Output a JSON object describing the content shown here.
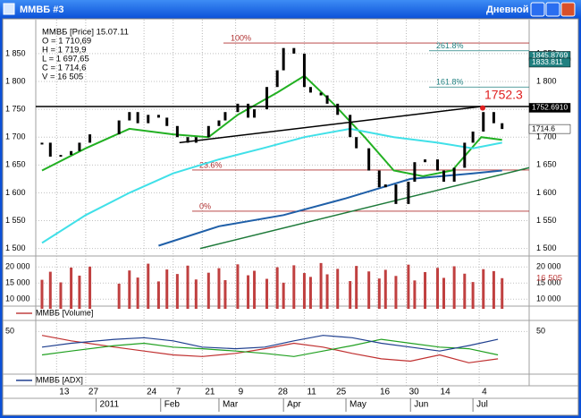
{
  "window": {
    "title": "ММВБ #3",
    "mode": "Дневной"
  },
  "info": {
    "lines": [
      "ММВБ [Price] 15.07.11",
      "O = 1 710,69",
      "H = 1 719,9",
      "L = 1 697,65",
      "C = 1 714,6",
      "V = 16 505"
    ]
  },
  "x_axis": {
    "xlim": [
      "2010-12-03",
      "2011-07-28"
    ],
    "ticks": [
      {
        "value": "2010-12-13",
        "label": "13"
      },
      {
        "value": "2010-12-27",
        "label": "27"
      },
      {
        "value": "2011-01-24",
        "label": "24"
      },
      {
        "value": "2011-02-07",
        "label": "7"
      },
      {
        "value": "2011-02-21",
        "label": "21"
      },
      {
        "value": "2011-03-09",
        "label": "9"
      },
      {
        "value": "2011-03-28",
        "label": "28"
      },
      {
        "value": "2011-04-11",
        "label": "11"
      },
      {
        "value": "2011-04-25",
        "label": "25"
      },
      {
        "value": "2011-05-16",
        "label": "16"
      },
      {
        "value": "2011-05-30",
        "label": "30"
      },
      {
        "value": "2011-06-14",
        "label": "14"
      },
      {
        "value": "2011-07-04",
        "label": "4"
      }
    ],
    "months": [
      {
        "value": "2011-01-01",
        "label": "2011"
      },
      {
        "value": "2011-02-01",
        "label": "Feb"
      },
      {
        "value": "2011-03-01",
        "label": "Mar"
      },
      {
        "value": "2011-04-01",
        "label": "Apr"
      },
      {
        "value": "2011-05-01",
        "label": "May"
      },
      {
        "value": "2011-06-01",
        "label": "Jun"
      },
      {
        "value": "2011-07-01",
        "label": "Jul"
      }
    ]
  },
  "chart_data": [
    {
      "type": "price",
      "ylim": [
        1493,
        1890
      ],
      "yticks": [
        {
          "value": 1500,
          "label": "1 500"
        },
        {
          "value": 1550,
          "label": "1 550"
        },
        {
          "value": 1600,
          "label": "1 600"
        },
        {
          "value": 1650,
          "label": "1 650"
        },
        {
          "value": 1700,
          "label": "1 700"
        },
        {
          "value": 1750,
          "label": "1 750"
        },
        {
          "value": 1800,
          "label": "1 800"
        },
        {
          "value": 1850,
          "label": "1 850"
        }
      ],
      "x": [
        "2010-12-06",
        "2010-12-10",
        "2010-12-15",
        "2010-12-20",
        "2010-12-24",
        "2010-12-29",
        "2011-01-12",
        "2011-01-17",
        "2011-01-21",
        "2011-01-26",
        "2011-01-31",
        "2011-02-04",
        "2011-02-09",
        "2011-02-14",
        "2011-02-18",
        "2011-02-24",
        "2011-03-01",
        "2011-03-04",
        "2011-03-10",
        "2011-03-15",
        "2011-03-18",
        "2011-03-24",
        "2011-03-29",
        "2011-04-01",
        "2011-04-06",
        "2011-04-11",
        "2011-04-14",
        "2011-04-19",
        "2011-04-22",
        "2011-04-27",
        "2011-05-03",
        "2011-05-06",
        "2011-05-12",
        "2011-05-17",
        "2011-05-20",
        "2011-05-25",
        "2011-05-31",
        "2011-06-03",
        "2011-06-08",
        "2011-06-14",
        "2011-06-17",
        "2011-06-22",
        "2011-06-27",
        "2011-07-01",
        "2011-07-06",
        "2011-07-11",
        "2011-07-15"
      ],
      "values": [
        1690,
        1665,
        1668,
        1675,
        1690,
        1705,
        1730,
        1745,
        1725,
        1740,
        1735,
        1720,
        1700,
        1690,
        1700,
        1720,
        1730,
        1745,
        1760,
        1735,
        1750,
        1790,
        1820,
        1860,
        1850,
        1790,
        1780,
        1775,
        1760,
        1740,
        1700,
        1680,
        1640,
        1610,
        1615,
        1580,
        1620,
        1655,
        1660,
        1640,
        1620,
        1645,
        1690,
        1710,
        1745,
        1725,
        1714.6
      ],
      "overlays": [
        {
          "color": "#22b022",
          "x": [
            "2010-12-06",
            "2010-12-27",
            "2011-01-17",
            "2011-02-07",
            "2011-02-24",
            "2011-03-10",
            "2011-03-29",
            "2011-04-11",
            "2011-04-25",
            "2011-05-10",
            "2011-05-24",
            "2011-06-07",
            "2011-06-21",
            "2011-07-05",
            "2011-07-15"
          ],
          "values": [
            1640,
            1680,
            1715,
            1705,
            1700,
            1740,
            1780,
            1810,
            1760,
            1700,
            1640,
            1630,
            1640,
            1700,
            1695
          ]
        },
        {
          "color": "#40e0e8",
          "x": [
            "2010-12-06",
            "2010-12-27",
            "2011-01-17",
            "2011-02-07",
            "2011-03-01",
            "2011-03-22",
            "2011-04-11",
            "2011-05-03",
            "2011-05-24",
            "2011-06-14",
            "2011-07-01",
            "2011-07-15"
          ],
          "values": [
            1510,
            1560,
            1600,
            1635,
            1660,
            1680,
            1700,
            1715,
            1700,
            1690,
            1680,
            1690
          ]
        },
        {
          "color": "#1f5fa8",
          "x": [
            "2011-01-31",
            "2011-03-01",
            "2011-04-01",
            "2011-05-01",
            "2011-06-01",
            "2011-07-01",
            "2011-07-15"
          ],
          "values": [
            1505,
            1540,
            1560,
            1590,
            1625,
            1635,
            1640
          ]
        },
        {
          "color": "#000000",
          "x": [
            "2011-02-10",
            "2011-07-05"
          ],
          "values": [
            1690,
            1755
          ]
        },
        {
          "color": "#000000",
          "x": [
            "2010-12-03",
            "2011-07-28"
          ],
          "values": [
            1755,
            1755
          ]
        },
        {
          "color": "#1e7a3a",
          "x": [
            "2011-02-20",
            "2011-07-28"
          ],
          "values": [
            1500,
            1645
          ]
        }
      ],
      "fib": [
        {
          "label": "100%",
          "value": 1869,
          "color": "#b03030"
        },
        {
          "label": "261.8%",
          "value": 1855,
          "color": "#208080"
        },
        {
          "label": "161.8%",
          "value": 1790,
          "color": "#208080"
        },
        {
          "label": "23.6%",
          "value": 1641,
          "color": "#b03030"
        },
        {
          "label": "0%",
          "value": 1567,
          "color": "#b03030"
        }
      ],
      "price_tags": [
        {
          "value": 1845.8769,
          "label": "1845.8769",
          "color": "#208080"
        },
        {
          "value": 1833.811,
          "label": "1833.811",
          "color": "#208080"
        },
        {
          "value": 1752.691,
          "label": "1752.6910",
          "color": "#000000"
        },
        {
          "value": 1714.6,
          "label": "1714.6",
          "color": "#ffffff"
        }
      ],
      "marker": {
        "value": 1752.3,
        "label": "1752.3",
        "color": "#e02020"
      }
    },
    {
      "type": "volume",
      "legend": "ММВБ [Volume]",
      "color": "#c04040",
      "ylim": [
        7000,
        22000
      ],
      "yticks": [
        {
          "value": 10000,
          "label": "10 000"
        },
        {
          "value": 15000,
          "label": "15 000"
        },
        {
          "value": 20000,
          "label": "20 000"
        }
      ],
      "values": [
        16000,
        18500,
        15200,
        19800,
        17300,
        20100,
        14800,
        18900,
        16700,
        21000,
        15500,
        19200,
        17800,
        20400,
        16100,
        18200,
        19600,
        15900,
        20800,
        17400,
        18800,
        16300,
        19900,
        15100,
        20500,
        18100,
        16900,
        21200,
        17700,
        19400,
        15600,
        20300,
        18600,
        16400,
        19100,
        17200,
        20700,
        15800,
        18400,
        19700,
        16600,
        20200,
        17900,
        15300,
        19300,
        18700,
        16505
      ],
      "last_label": {
        "value": 16505,
        "label": "16 505"
      }
    },
    {
      "type": "adx",
      "legend": "ММВБ [ADX]",
      "legend_color": "#1f3f8f",
      "ylim": [
        0,
        55
      ],
      "yticks": [
        50
      ],
      "x": [
        "2010-12-06",
        "2010-12-20",
        "2011-01-10",
        "2011-01-24",
        "2011-02-07",
        "2011-02-21",
        "2011-03-09",
        "2011-03-23",
        "2011-04-06",
        "2011-04-20",
        "2011-05-04",
        "2011-05-18",
        "2011-06-01",
        "2011-06-15",
        "2011-06-29",
        "2011-07-13"
      ],
      "series": [
        {
          "color": "#c03030",
          "values": [
            45,
            38,
            30,
            25,
            20,
            18,
            22,
            28,
            35,
            30,
            22,
            15,
            12,
            20,
            10,
            15
          ]
        },
        {
          "color": "#20a020",
          "values": [
            20,
            25,
            32,
            35,
            30,
            28,
            25,
            22,
            18,
            25,
            32,
            40,
            35,
            30,
            28,
            20
          ]
        },
        {
          "color": "#1f3f8f",
          "values": [
            30,
            35,
            40,
            42,
            38,
            30,
            28,
            30,
            38,
            45,
            42,
            35,
            30,
            25,
            32,
            40
          ]
        }
      ]
    }
  ]
}
